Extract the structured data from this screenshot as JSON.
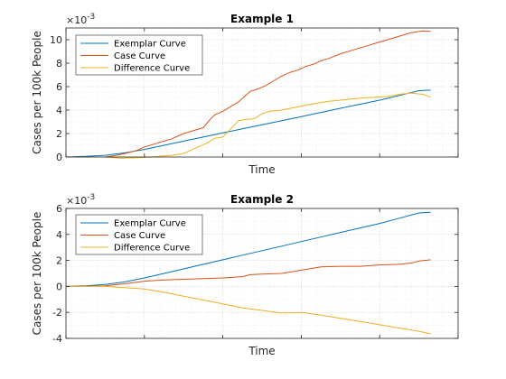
{
  "colors": {
    "exemplar": "#0072BD",
    "case": "#D95319",
    "difference": "#EDB120"
  },
  "chart_data": [
    {
      "type": "line",
      "title": "Example 1",
      "xlabel": "Time",
      "ylabel": "Cases per 100k People",
      "exponent": "×10",
      "exponent_sup": "-3",
      "xlim": [
        0,
        100
      ],
      "ylim": [
        0,
        11
      ],
      "yticks": [
        0,
        2,
        4,
        6,
        8,
        10
      ],
      "ytick_labels": [
        "0",
        "2",
        "4",
        "6",
        "8",
        "10"
      ],
      "xticks": [
        0,
        20,
        40,
        60,
        80,
        100
      ],
      "legend": "top-left",
      "grid": "on",
      "series": [
        {
          "name": "Exemplar Curve",
          "color_key": "exemplar",
          "x": [
            0,
            5,
            10,
            15,
            20,
            25,
            30,
            35,
            40,
            45,
            50,
            55,
            60,
            65,
            70,
            75,
            80,
            85,
            90,
            93
          ],
          "y": [
            0,
            0.05,
            0.15,
            0.35,
            0.65,
            1.0,
            1.35,
            1.7,
            2.05,
            2.4,
            2.75,
            3.1,
            3.45,
            3.8,
            4.15,
            4.5,
            4.85,
            5.25,
            5.65,
            5.7
          ]
        },
        {
          "name": "Case Curve",
          "color_key": "case",
          "x": [
            0,
            5,
            10,
            12,
            15,
            18,
            20,
            22,
            25,
            27,
            30,
            32,
            35,
            37,
            38,
            40,
            42,
            44,
            45,
            47,
            49,
            51,
            53,
            55,
            57,
            59,
            61,
            63,
            65,
            67,
            70,
            73,
            76,
            79,
            82,
            85,
            88,
            91,
            93
          ],
          "y": [
            0,
            0,
            0,
            0.1,
            0.3,
            0.55,
            0.85,
            1.05,
            1.35,
            1.55,
            2.0,
            2.2,
            2.5,
            3.3,
            3.6,
            3.9,
            4.3,
            4.7,
            5.0,
            5.6,
            5.8,
            6.1,
            6.5,
            6.9,
            7.2,
            7.4,
            7.7,
            7.9,
            8.2,
            8.4,
            8.8,
            9.1,
            9.4,
            9.7,
            10.0,
            10.3,
            10.6,
            10.75,
            10.7
          ]
        },
        {
          "name": "Difference Curve",
          "color_key": "difference",
          "x": [
            0,
            5,
            10,
            14,
            18,
            22,
            25,
            27,
            30,
            32,
            34,
            36,
            38,
            40,
            42,
            44,
            46,
            48,
            50,
            52,
            55,
            58,
            61,
            64,
            67,
            70,
            73,
            76,
            79,
            82,
            85,
            88,
            91,
            93
          ],
          "y": [
            0,
            0,
            0,
            -0.1,
            -0.05,
            0,
            0.1,
            0.15,
            0.3,
            0.6,
            0.9,
            1.2,
            1.6,
            1.7,
            2.4,
            3.1,
            3.2,
            3.25,
            3.7,
            3.9,
            4.0,
            4.2,
            4.4,
            4.6,
            4.75,
            4.85,
            4.95,
            5.05,
            5.1,
            5.15,
            5.35,
            5.45,
            5.35,
            5.1
          ]
        }
      ]
    },
    {
      "type": "line",
      "title": "Example 2",
      "xlabel": "Time",
      "ylabel": "Cases per 100k People",
      "exponent": "×10",
      "exponent_sup": "-3",
      "xlim": [
        0,
        100
      ],
      "ylim": [
        -4,
        6
      ],
      "yticks": [
        -4,
        -2,
        0,
        2,
        4,
        6
      ],
      "ytick_labels": [
        "-4",
        "-2",
        "0",
        "2",
        "4",
        "6"
      ],
      "xticks": [
        0,
        20,
        40,
        60,
        80,
        100
      ],
      "legend": "top-left",
      "grid": "on",
      "series": [
        {
          "name": "Exemplar Curve",
          "color_key": "exemplar",
          "x": [
            0,
            5,
            10,
            15,
            20,
            25,
            30,
            35,
            40,
            45,
            50,
            55,
            60,
            65,
            70,
            75,
            80,
            85,
            90,
            93
          ],
          "y": [
            0,
            0.05,
            0.15,
            0.35,
            0.65,
            1.0,
            1.35,
            1.7,
            2.05,
            2.4,
            2.75,
            3.1,
            3.45,
            3.8,
            4.15,
            4.5,
            4.85,
            5.25,
            5.65,
            5.7
          ]
        },
        {
          "name": "Case Curve",
          "color_key": "case",
          "x": [
            0,
            5,
            10,
            15,
            20,
            25,
            30,
            35,
            40,
            45,
            47,
            50,
            55,
            57,
            60,
            65,
            70,
            75,
            80,
            85,
            88,
            90,
            93
          ],
          "y": [
            0,
            0,
            0.05,
            0.2,
            0.4,
            0.5,
            0.55,
            0.6,
            0.65,
            0.75,
            0.9,
            0.95,
            1.0,
            1.1,
            1.25,
            1.5,
            1.55,
            1.55,
            1.65,
            1.7,
            1.8,
            1.95,
            2.05
          ]
        },
        {
          "name": "Difference Curve",
          "color_key": "difference",
          "x": [
            0,
            5,
            10,
            15,
            20,
            25,
            30,
            35,
            40,
            45,
            50,
            55,
            60,
            65,
            70,
            75,
            80,
            85,
            90,
            93
          ],
          "y": [
            0,
            0,
            0,
            -0.1,
            -0.2,
            -0.45,
            -0.75,
            -1.05,
            -1.35,
            -1.65,
            -1.85,
            -2.05,
            -2.0,
            -2.2,
            -2.45,
            -2.7,
            -2.95,
            -3.2,
            -3.45,
            -3.65
          ]
        }
      ]
    }
  ]
}
